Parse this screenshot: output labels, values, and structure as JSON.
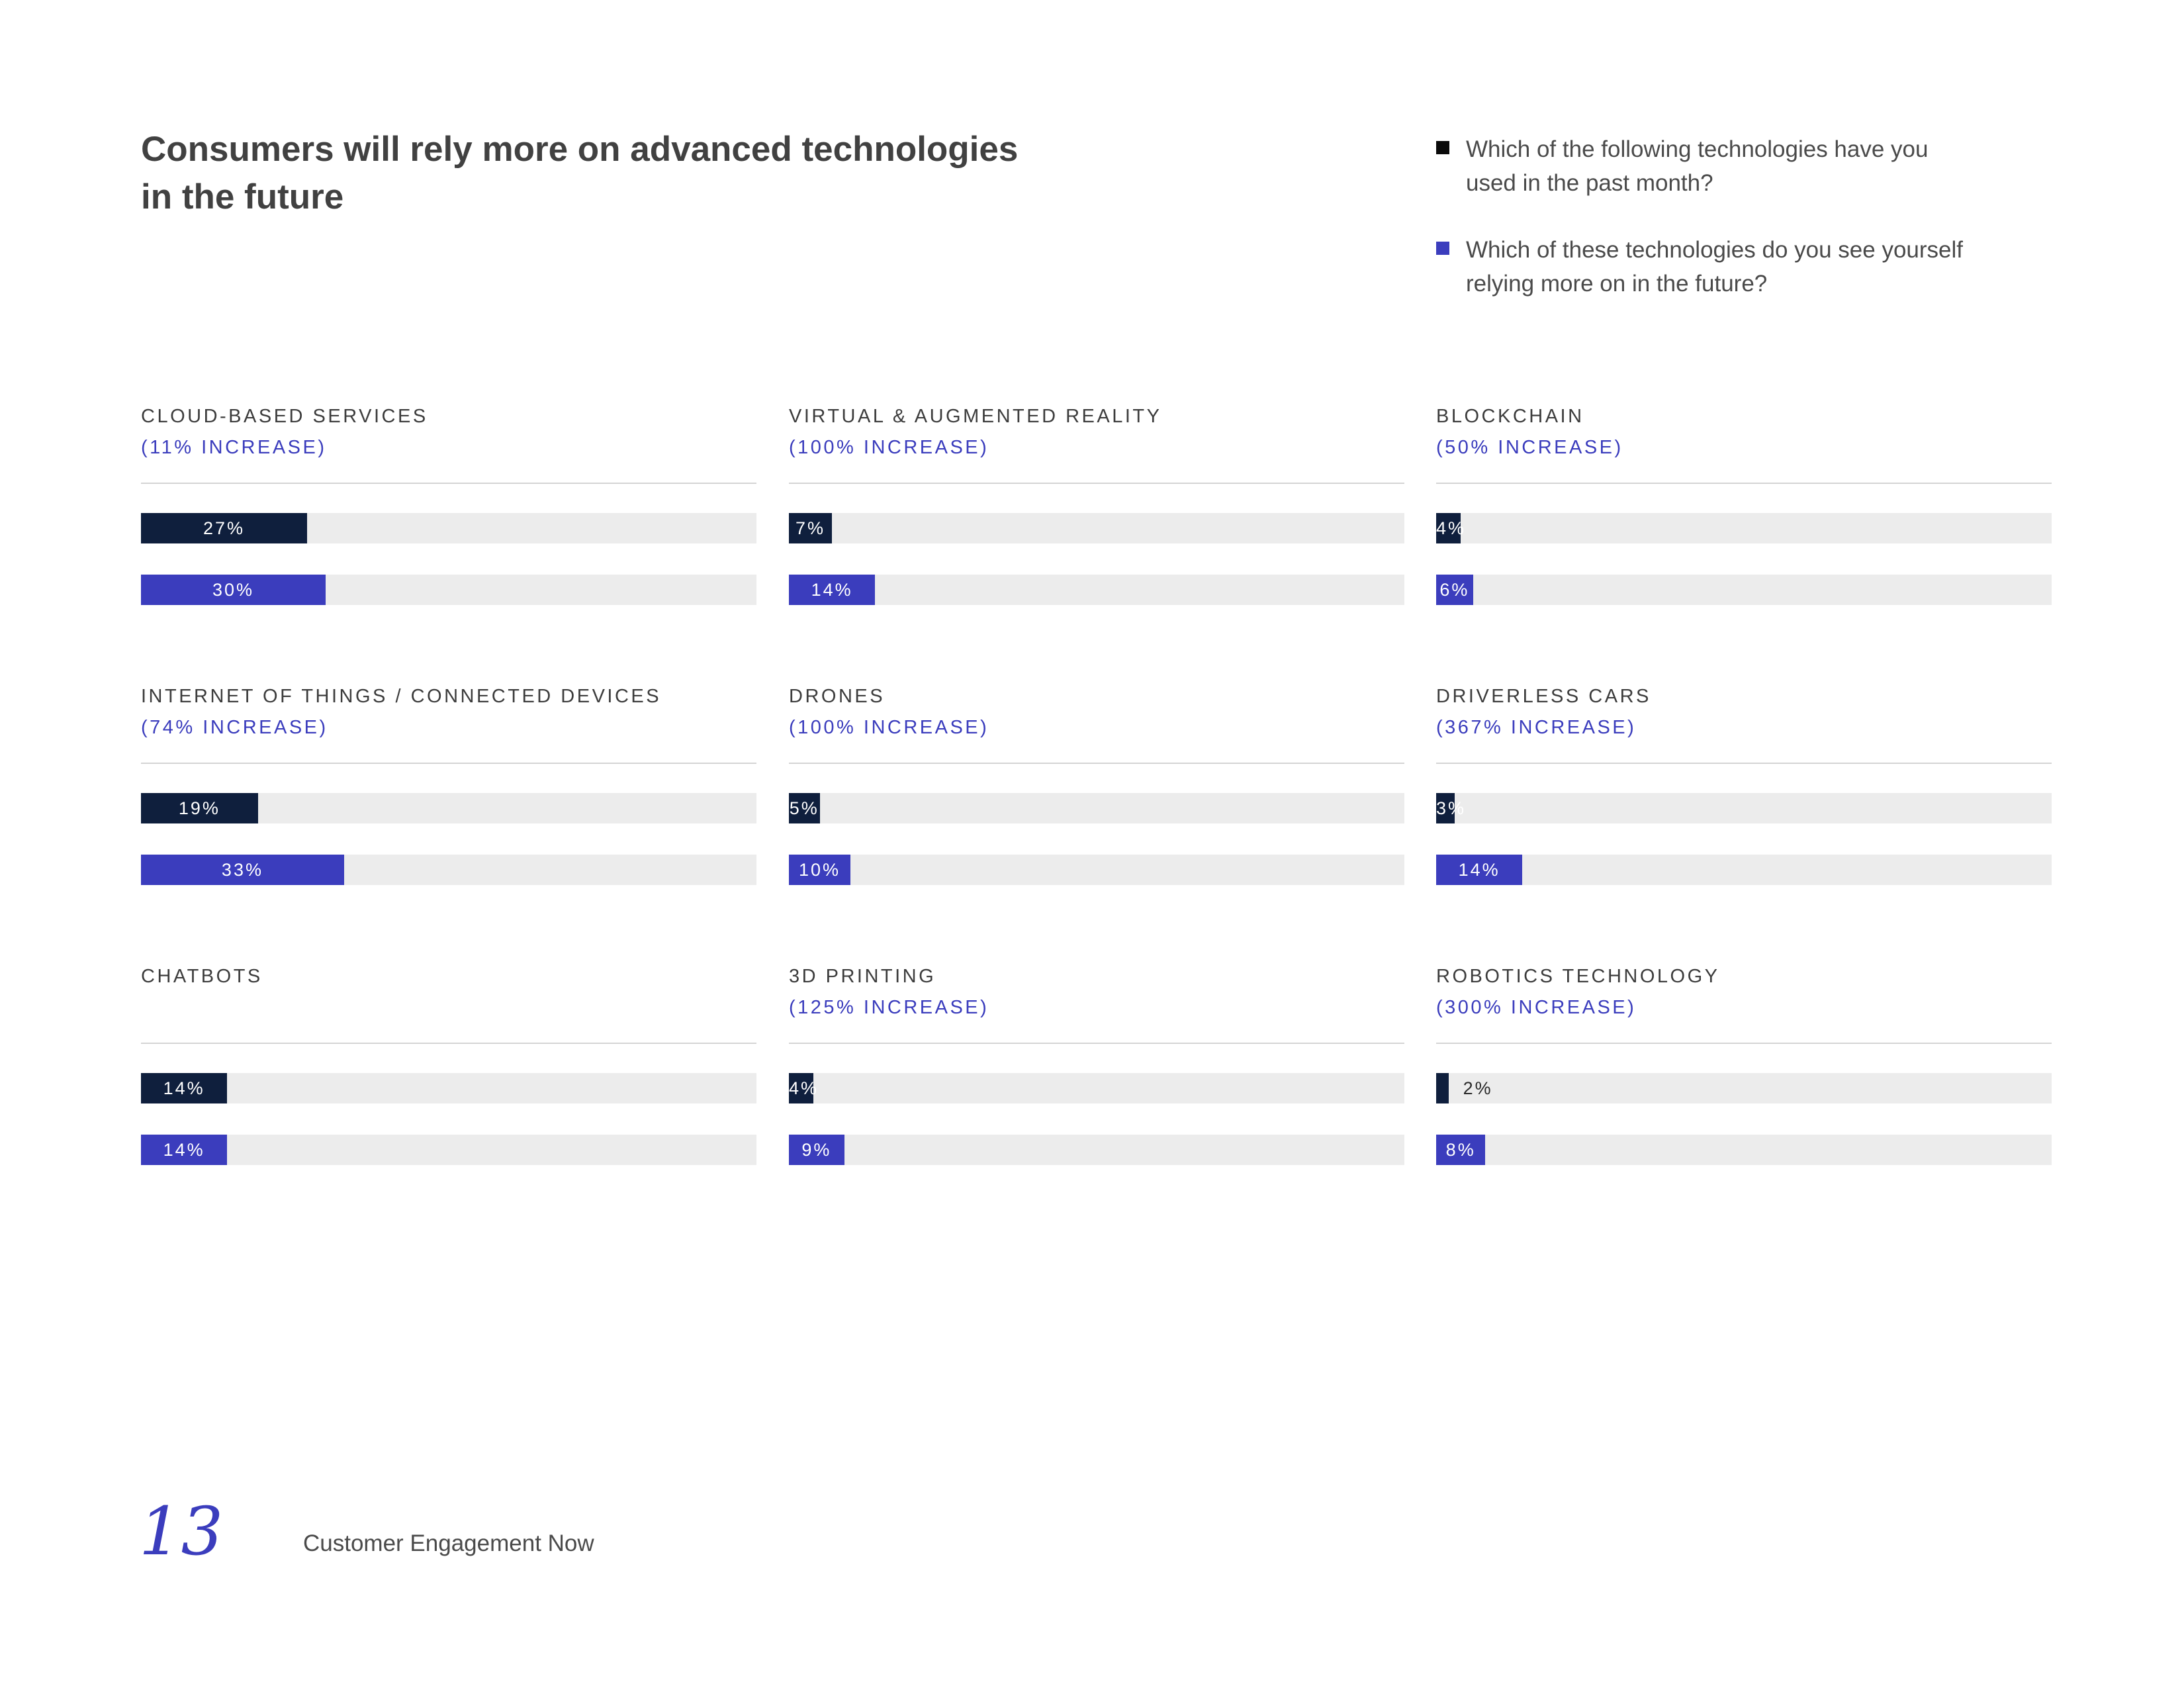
{
  "title_line1": "Consumers will rely more on advanced technologies",
  "title_line2": "in the future",
  "legend": [
    {
      "line1": "Which of the following technologies have you",
      "line2": "used in the past month?",
      "color": "#0a0a0a"
    },
    {
      "line1": "Which of these technologies do you see yourself",
      "line2": "relying more on in the future?",
      "color": "#3b3dbd"
    }
  ],
  "colors": {
    "past": "#0f1f3d",
    "future": "#3b3dbd",
    "accent": "#3b3dbd",
    "track": "#ececec"
  },
  "chart_data": {
    "type": "bar",
    "orientation": "horizontal",
    "series": [
      {
        "name": "Which of the following technologies have you used in the past month?"
      },
      {
        "name": "Which of these technologies do you see yourself relying more on in the future?"
      }
    ],
    "xlim": [
      0,
      100
    ],
    "panels": [
      {
        "label": "CLOUD-BASED SERVICES",
        "increase": "(11% INCREASE)",
        "past": 27,
        "future": 30,
        "past_label": "27%",
        "future_label": "30%"
      },
      {
        "label": "VIRTUAL & AUGMENTED REALITY",
        "increase": "(100% INCREASE)",
        "past": 7,
        "future": 14,
        "past_label": "7%",
        "future_label": "14%"
      },
      {
        "label": "BLOCKCHAIN",
        "increase": "(50% INCREASE)",
        "past": 4,
        "future": 6,
        "past_label": "4%",
        "future_label": "6%"
      },
      {
        "label": "INTERNET OF THINGS / CONNECTED DEVICES",
        "increase": "(74% INCREASE)",
        "past": 19,
        "future": 33,
        "past_label": "19%",
        "future_label": "33%"
      },
      {
        "label": "DRONES",
        "increase": "(100% INCREASE)",
        "past": 5,
        "future": 10,
        "past_label": "5%",
        "future_label": "10%"
      },
      {
        "label": "DRIVERLESS CARS",
        "increase": "(367% INCREASE)",
        "past": 3,
        "future": 14,
        "past_label": "3%",
        "future_label": "14%"
      },
      {
        "label": "CHATBOTS",
        "increase": "",
        "past": 14,
        "future": 14,
        "past_label": "14%",
        "future_label": "14%"
      },
      {
        "label": "3D PRINTING",
        "increase": "(125% INCREASE)",
        "past": 4,
        "future": 9,
        "past_label": "4%",
        "future_label": "9%"
      },
      {
        "label": "ROBOTICS TECHNOLOGY",
        "increase": "(300% INCREASE)",
        "past": 2,
        "future": 8,
        "past_label": "2%",
        "future_label": "8%"
      }
    ]
  },
  "footer": {
    "page_number": "13",
    "title": "Customer Engagement Now"
  }
}
